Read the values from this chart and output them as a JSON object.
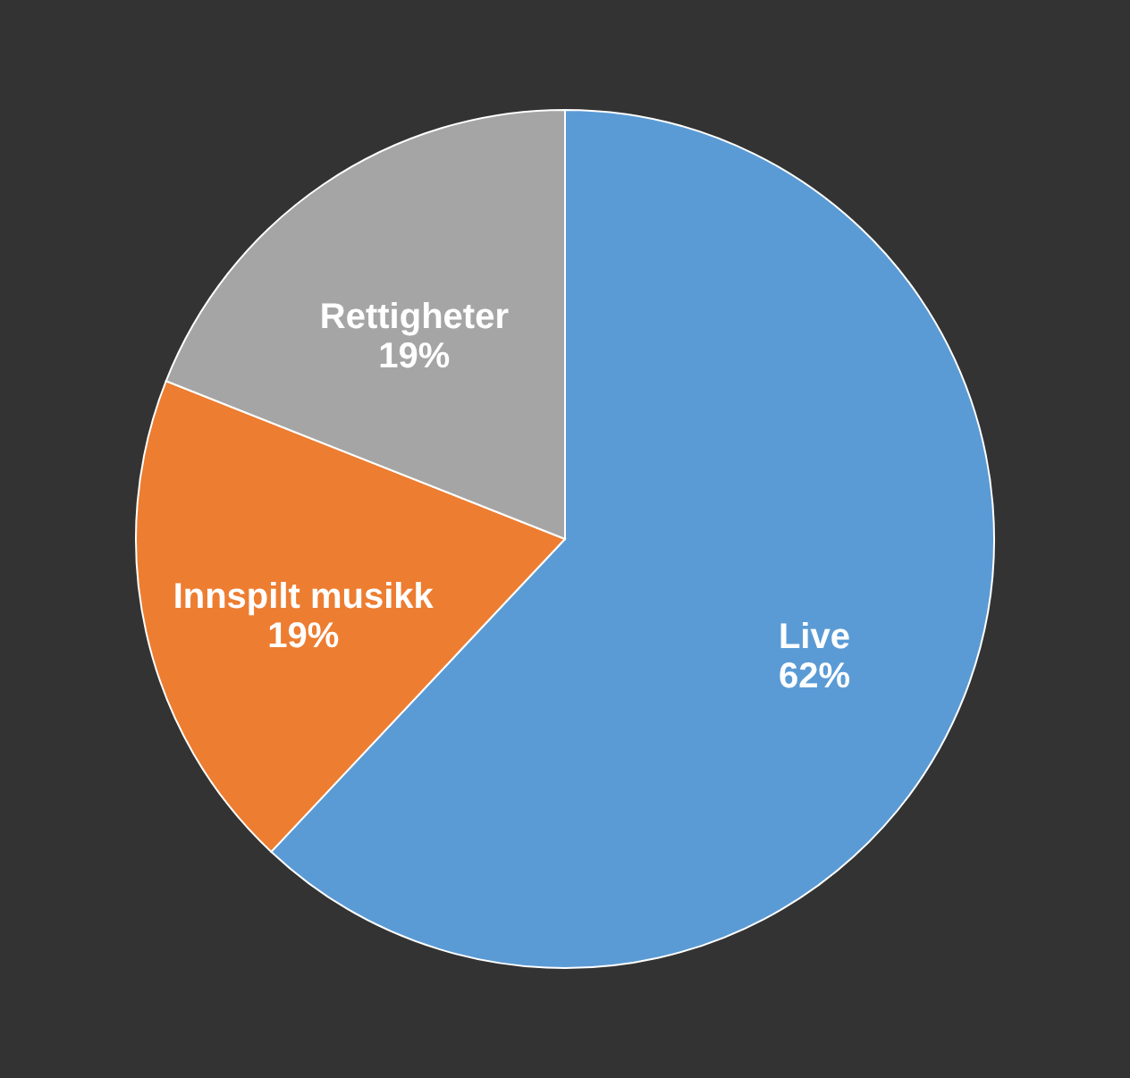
{
  "chart_data": {
    "type": "pie",
    "categories": [
      "Live",
      "Innspilt musikk",
      "Rettigheter"
    ],
    "values": [
      62,
      19,
      19
    ],
    "value_labels": [
      "62%",
      "19%",
      "19%"
    ],
    "colors": [
      "#5b9bd5",
      "#ed7d31",
      "#a5a5a5"
    ],
    "legend": false
  }
}
